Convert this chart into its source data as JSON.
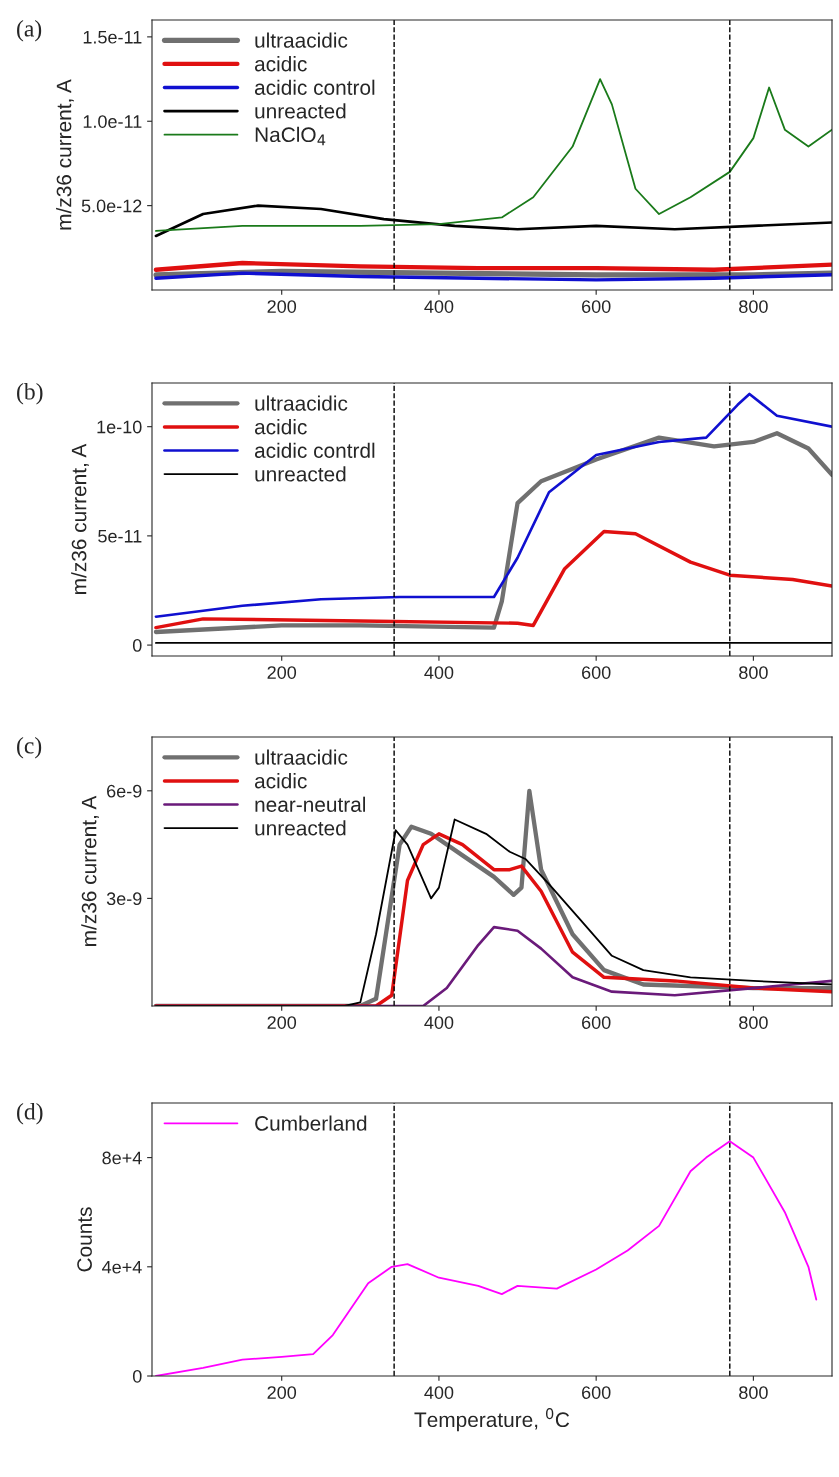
{
  "chart_data": [
    {
      "type": "line",
      "title": "(a)",
      "ylabel": "m/z36 current, A",
      "xlim": [
        35,
        900
      ],
      "xticks": [
        200,
        400,
        600,
        800
      ],
      "ylim": [
        0,
        1.6e-11
      ],
      "yticks": [
        {
          "value": 5e-12,
          "label": "5.0e-12"
        },
        {
          "value": 1e-11,
          "label": "1.0e-11"
        },
        {
          "value": 1.5e-11,
          "label": "1.5e-11"
        }
      ],
      "legend": "top left",
      "grid": false,
      "ref_lines": [
        {
          "axis": "x",
          "value": 343,
          "color": "#000000",
          "line_style": "dashed"
        },
        {
          "axis": "x",
          "value": 770,
          "color": "#000000",
          "line_style": "dashed"
        }
      ],
      "series": [
        {
          "name": "ultraacidic",
          "color": "#707070",
          "x": [
            40,
            200,
            400,
            600,
            800,
            900
          ],
          "values": [
            9e-13,
            1.1e-12,
            1e-12,
            9e-13,
            9e-13,
            1e-12
          ]
        },
        {
          "name": "acidic",
          "color": "#e01010",
          "x": [
            40,
            150,
            300,
            450,
            600,
            750,
            900
          ],
          "values": [
            1.2e-12,
            1.6e-12,
            1.4e-12,
            1.3e-12,
            1.3e-12,
            1.2e-12,
            1.5e-12
          ]
        },
        {
          "name": "acidic control",
          "color": "#1010d0",
          "x": [
            40,
            150,
            300,
            450,
            600,
            750,
            900
          ],
          "values": [
            7e-13,
            1e-12,
            8e-13,
            7e-13,
            6e-13,
            7e-13,
            9e-13
          ]
        },
        {
          "name": "unreacted",
          "color": "#000000",
          "x": [
            40,
            100,
            170,
            250,
            330,
            420,
            500,
            600,
            700,
            800,
            900
          ],
          "values": [
            3.2e-12,
            4.5e-12,
            5e-12,
            4.8e-12,
            4.2e-12,
            3.8e-12,
            3.6e-12,
            3.8e-12,
            3.6e-12,
            3.8e-12,
            4e-12
          ]
        },
        {
          "name": "NaClO$_{4}$",
          "color": "#1a7a1a",
          "x": [
            40,
            150,
            300,
            400,
            480,
            520,
            570,
            605,
            620,
            650,
            680,
            720,
            770,
            800,
            820,
            840,
            870,
            900
          ],
          "values": [
            3.5e-12,
            3.8e-12,
            3.8e-12,
            3.9e-12,
            4.3e-12,
            5.5e-12,
            8.5e-12,
            1.25e-11,
            1.1e-11,
            6e-12,
            4.5e-12,
            5.5e-12,
            7e-12,
            9e-12,
            1.2e-11,
            9.5e-12,
            8.5e-12,
            9.5e-12
          ]
        }
      ]
    },
    {
      "type": "line",
      "title": "(b)",
      "ylabel": "m/z36 current, A",
      "xlim": [
        35,
        900
      ],
      "xticks": [
        200,
        400,
        600,
        800
      ],
      "ylim": [
        -5e-12,
        1.2e-10
      ],
      "yticks": [
        0,
        {
          "value": 5e-11,
          "label": "5e-11"
        },
        {
          "value": 1e-10,
          "label": "1e-10"
        }
      ],
      "legend": "top left",
      "grid": false,
      "ref_lines": [
        {
          "axis": "x",
          "value": 343,
          "color": "#000000",
          "line_style": "dashed"
        },
        {
          "axis": "x",
          "value": 770,
          "color": "#000000",
          "line_style": "dashed"
        }
      ],
      "series": [
        {
          "name": "ultraacidic",
          "color": "#707070",
          "x": [
            40,
            200,
            300,
            470,
            480,
            500,
            530,
            600,
            680,
            750,
            800,
            830,
            870,
            900
          ],
          "values": [
            6e-12,
            9e-12,
            9e-12,
            8e-12,
            2e-11,
            6.5e-11,
            7.5e-11,
            8.5e-11,
            9.5e-11,
            9.1e-11,
            9.3e-11,
            9.7e-11,
            9e-11,
            7.8e-11
          ]
        },
        {
          "name": "acidic",
          "color": "#e01010",
          "x": [
            40,
            100,
            300,
            500,
            520,
            560,
            610,
            650,
            720,
            770,
            850,
            900
          ],
          "values": [
            8e-12,
            1.2e-11,
            1.1e-11,
            1e-11,
            9e-12,
            3.5e-11,
            5.2e-11,
            5.1e-11,
            3.8e-11,
            3.2e-11,
            3e-11,
            2.7e-11
          ]
        },
        {
          "name": "acidic contrdl",
          "color": "#1010d0",
          "x": [
            40,
            150,
            250,
            350,
            470,
            500,
            540,
            600,
            680,
            740,
            780,
            795,
            830,
            900
          ],
          "values": [
            1.3e-11,
            1.8e-11,
            2.1e-11,
            2.2e-11,
            2.2e-11,
            4e-11,
            7e-11,
            8.7e-11,
            9.3e-11,
            9.5e-11,
            1.1e-10,
            1.15e-10,
            1.05e-10,
            1e-10
          ]
        },
        {
          "name": "unreacted",
          "color": "#000000",
          "x": [
            40,
            900
          ],
          "values": [
            1e-12,
            1e-12
          ]
        }
      ]
    },
    {
      "type": "line",
      "title": "(c)",
      "ylabel": "m/z36 current, A",
      "xlim": [
        35,
        900
      ],
      "xticks": [
        200,
        400,
        600,
        800
      ],
      "ylim": [
        0,
        7.5e-09
      ],
      "yticks": [
        {
          "value": 3e-09,
          "label": "3e-9"
        },
        {
          "value": 6e-09,
          "label": "6e-9"
        }
      ],
      "legend": "top left",
      "grid": false,
      "ref_lines": [
        {
          "axis": "x",
          "value": 343,
          "color": "#000000",
          "line_style": "dashed"
        },
        {
          "axis": "x",
          "value": 770,
          "color": "#000000",
          "line_style": "dashed"
        }
      ],
      "series": [
        {
          "name": "ultraacidic",
          "color": "#707070",
          "x": [
            40,
            300,
            320,
            350,
            365,
            390,
            430,
            470,
            495,
            505,
            515,
            530,
            570,
            610,
            660,
            800,
            900
          ],
          "values": [
            0,
            0,
            2e-10,
            4.5e-09,
            5e-09,
            4.8e-09,
            4.2e-09,
            3.6e-09,
            3.1e-09,
            3.3e-09,
            6e-09,
            3.8e-09,
            2e-09,
            1e-09,
            6e-10,
            5e-10,
            5e-10
          ]
        },
        {
          "name": "acidic",
          "color": "#e01010",
          "x": [
            40,
            320,
            340,
            360,
            380,
            400,
            430,
            470,
            490,
            505,
            530,
            570,
            610,
            700,
            800,
            900
          ],
          "values": [
            0,
            0,
            3e-10,
            3.5e-09,
            4.5e-09,
            4.8e-09,
            4.5e-09,
            3.8e-09,
            3.8e-09,
            3.9e-09,
            3.2e-09,
            1.5e-09,
            8e-10,
            7e-10,
            5e-10,
            4e-10
          ]
        },
        {
          "name": "near-neutral",
          "color": "#6a1a7a",
          "x": [
            40,
            380,
            410,
            450,
            470,
            500,
            530,
            570,
            620,
            700,
            800,
            900
          ],
          "values": [
            0,
            0,
            5e-10,
            1.7e-09,
            2.2e-09,
            2.1e-09,
            1.6e-09,
            8e-10,
            4e-10,
            3e-10,
            5e-10,
            7e-10
          ]
        },
        {
          "name": "unreacted",
          "color": "#000000",
          "x": [
            40,
            280,
            300,
            320,
            345,
            360,
            390,
            400,
            420,
            460,
            490,
            510,
            540,
            580,
            620,
            660,
            720,
            800,
            900
          ],
          "values": [
            0,
            0,
            1e-10,
            2e-09,
            4.9e-09,
            4.5e-09,
            3e-09,
            3.3e-09,
            5.2e-09,
            4.8e-09,
            4.3e-09,
            4.1e-09,
            3.4e-09,
            2.4e-09,
            1.4e-09,
            1e-09,
            8e-10,
            7e-10,
            6e-10
          ]
        }
      ]
    },
    {
      "type": "line",
      "title": "(d)",
      "ylabel": "Counts",
      "xlabel": "Temperature, $^{0}$C",
      "xlim": [
        35,
        900
      ],
      "xticks": [
        200,
        400,
        600,
        800
      ],
      "ylim": [
        0,
        100000
      ],
      "yticks": [
        0,
        {
          "value": 40000,
          "label": "4e+4"
        },
        {
          "value": 80000,
          "label": "8e+4"
        }
      ],
      "legend": "top left",
      "grid": false,
      "ref_lines": [
        {
          "axis": "x",
          "value": 343,
          "color": "#000000",
          "line_style": "dashed"
        },
        {
          "axis": "x",
          "value": 770,
          "color": "#000000",
          "line_style": "dashed"
        }
      ],
      "series": [
        {
          "name": "Cumberland",
          "color": "#ff00ff",
          "x": [
            40,
            100,
            150,
            200,
            240,
            265,
            310,
            340,
            360,
            400,
            450,
            480,
            500,
            550,
            600,
            640,
            680,
            720,
            740,
            770,
            800,
            840,
            870,
            880
          ],
          "values": [
            0,
            3000,
            6000,
            7000,
            8000,
            15000,
            34000,
            40000,
            41000,
            36000,
            33000,
            30000,
            33000,
            32000,
            39000,
            46000,
            55000,
            75000,
            80000,
            86000,
            80000,
            60000,
            40000,
            28000
          ]
        }
      ]
    }
  ]
}
